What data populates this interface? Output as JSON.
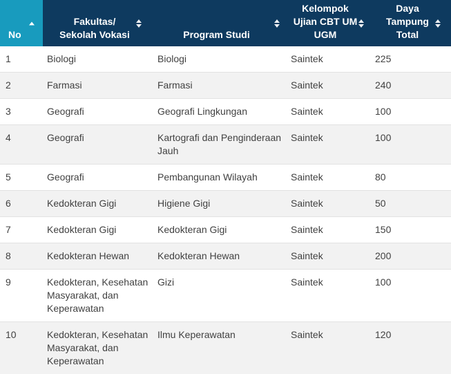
{
  "table": {
    "columns": [
      {
        "id": "no",
        "label": "No",
        "sort_state": "ascending"
      },
      {
        "id": "fakultas",
        "lines": [
          "Fakultas/",
          "Sekolah Vokasi"
        ],
        "sort_state": "none"
      },
      {
        "id": "program",
        "lines": [
          "Program Studi"
        ],
        "sort_state": "none"
      },
      {
        "id": "kelompok",
        "lines": [
          "Kelompok",
          "Ujian CBT UM",
          "UGM"
        ],
        "sort_state": "none"
      },
      {
        "id": "daya",
        "lines": [
          "Daya",
          "Tampung",
          "Total"
        ],
        "sort_state": "none"
      }
    ],
    "rows": [
      {
        "no": "1",
        "fakultas": "Biologi",
        "program": "Biologi",
        "kelompok": "Saintek",
        "daya": "225"
      },
      {
        "no": "2",
        "fakultas": "Farmasi",
        "program": "Farmasi",
        "kelompok": "Saintek",
        "daya": "240"
      },
      {
        "no": "3",
        "fakultas": "Geografi",
        "program": "Geografi Lingkungan",
        "kelompok": "Saintek",
        "daya": "100"
      },
      {
        "no": "4",
        "fakultas": "Geografi",
        "program": "Kartografi dan Penginderaan Jauh",
        "kelompok": "Saintek",
        "daya": "100"
      },
      {
        "no": "5",
        "fakultas": "Geografi",
        "program": "Pembangunan Wilayah",
        "kelompok": "Saintek",
        "daya": "80"
      },
      {
        "no": "6",
        "fakultas": "Kedokteran Gigi",
        "program": "Higiene Gigi",
        "kelompok": "Saintek",
        "daya": "50"
      },
      {
        "no": "7",
        "fakultas": "Kedokteran Gigi",
        "program": "Kedokteran Gigi",
        "kelompok": "Saintek",
        "daya": "150"
      },
      {
        "no": "8",
        "fakultas": "Kedokteran Hewan",
        "program": "Kedokteran Hewan",
        "kelompok": "Saintek",
        "daya": "200"
      },
      {
        "no": "9",
        "fakultas": "Kedokteran, Kesehatan Masyarakat, dan Keperawatan",
        "program": "Gizi",
        "kelompok": "Saintek",
        "daya": "100"
      },
      {
        "no": "10",
        "fakultas": "Kedokteran, Kesehatan Masyarakat, dan Keperawatan",
        "program": "Ilmu Keperawatan",
        "kelompok": "Saintek",
        "daya": "120"
      }
    ]
  },
  "colors": {
    "header_bg": "#0e3a5f",
    "sorted_header_bg": "#189bbe",
    "stripe_bg": "#f2f2f2",
    "row_border": "#e2e2e2",
    "body_text": "#414141",
    "header_text": "#ffffff"
  }
}
